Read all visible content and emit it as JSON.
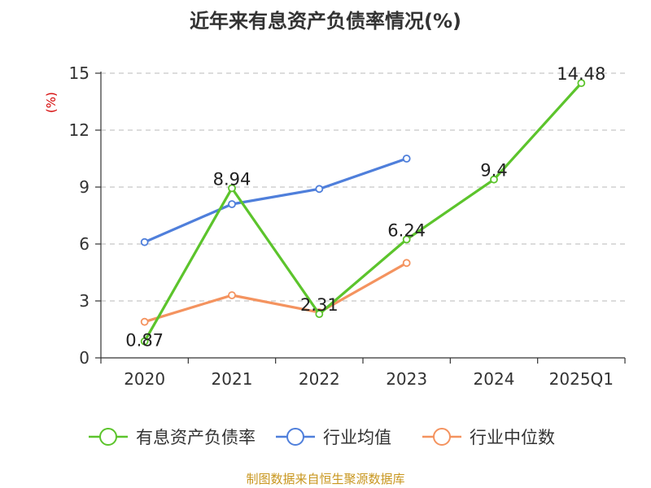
{
  "chart_data": {
    "type": "line",
    "title": "近年来有息资产负债率情况(%)",
    "ylabel": "(%)",
    "xlabel": "",
    "categories": [
      "2020",
      "2021",
      "2022",
      "2023",
      "2024",
      "2025Q1"
    ],
    "ylim": [
      0,
      15
    ],
    "yticks": [
      0,
      3,
      6,
      9,
      12,
      15
    ],
    "grid": true,
    "legend_position": "bottom",
    "series": [
      {
        "name": "有息资产负债率",
        "color": "#5cc42c",
        "values": [
          0.87,
          8.94,
          2.31,
          6.24,
          9.4,
          14.48
        ],
        "data_labels": [
          "0.87",
          "8.94",
          "2.31",
          "6.24",
          "9.4",
          "14.48"
        ]
      },
      {
        "name": "行业均值",
        "color": "#4f7fdb",
        "values": [
          6.1,
          8.1,
          8.9,
          10.5,
          null,
          null
        ]
      },
      {
        "name": "行业中位数",
        "color": "#f4935f",
        "values": [
          1.9,
          3.3,
          2.4,
          5.0,
          null,
          null
        ]
      }
    ],
    "source": "制图数据来自恒生聚源数据库"
  }
}
